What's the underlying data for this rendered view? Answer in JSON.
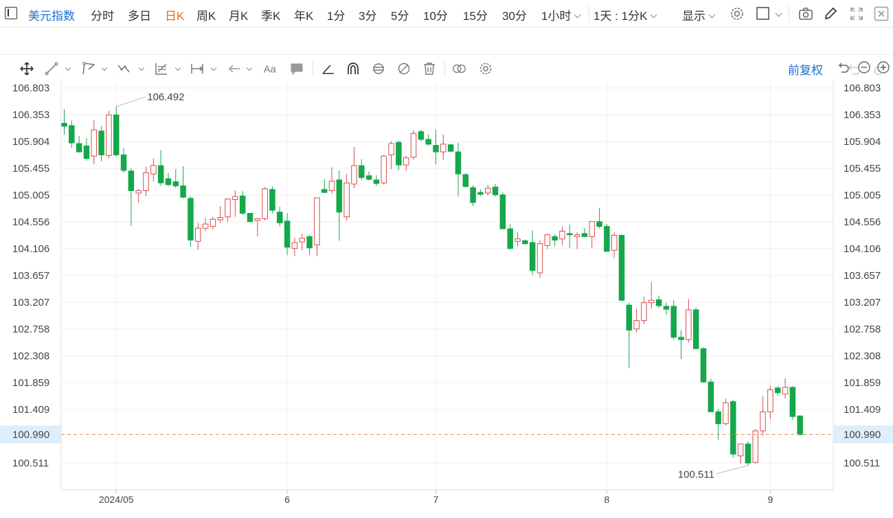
{
  "symbol": "美元指数",
  "periods": [
    "分时",
    "多日",
    "日K",
    "周K",
    "月K",
    "季K",
    "年K",
    "1分",
    "3分",
    "5分",
    "10分",
    "15分",
    "30分"
  ],
  "active_period": "日K",
  "hour_dropdown": "1小时",
  "kline_mode": "1天 : 1分K",
  "display_label": "显示",
  "adjust_label": "前复权",
  "colors": {
    "up": "#d94a4a",
    "down": "#14a84a",
    "accent": "#1e6fd1",
    "active": "#ec6a1c",
    "current_line": "#ee8a43",
    "grid": "#eeeeee"
  },
  "chart_data": {
    "type": "candlestick",
    "title": "",
    "xlabel": "",
    "ylabel": "",
    "ylim": [
      100.33,
      106.98
    ],
    "y_ticks": [
      "106.803",
      "106.353",
      "105.904",
      "105.455",
      "105.005",
      "104.556",
      "104.106",
      "103.657",
      "103.207",
      "102.758",
      "102.308",
      "101.859",
      "101.409",
      "100.511"
    ],
    "x_ticks": [
      "2024/05",
      "6",
      "7",
      "8",
      "9"
    ],
    "x_tick_index": [
      7,
      30,
      50,
      73,
      95
    ],
    "current_value": "100.990",
    "max_label": "106.492",
    "min_label": "100.511",
    "grid": true,
    "candles": [
      {
        "o": 106.21,
        "h": 106.45,
        "l": 106.02,
        "c": 106.16
      },
      {
        "o": 106.17,
        "h": 106.26,
        "l": 105.8,
        "c": 105.88
      },
      {
        "o": 105.87,
        "h": 106.0,
        "l": 105.72,
        "c": 105.73
      },
      {
        "o": 105.83,
        "h": 105.96,
        "l": 105.58,
        "c": 105.62
      },
      {
        "o": 105.66,
        "h": 106.26,
        "l": 105.52,
        "c": 106.1
      },
      {
        "o": 106.08,
        "h": 106.16,
        "l": 105.57,
        "c": 105.68
      },
      {
        "o": 105.67,
        "h": 106.42,
        "l": 105.62,
        "c": 106.35
      },
      {
        "o": 106.35,
        "h": 106.49,
        "l": 105.65,
        "c": 105.68
      },
      {
        "o": 105.68,
        "h": 105.79,
        "l": 105.38,
        "c": 105.42
      },
      {
        "o": 105.41,
        "h": 105.45,
        "l": 104.49,
        "c": 105.08
      },
      {
        "o": 105.04,
        "h": 105.11,
        "l": 104.87,
        "c": 105.08
      },
      {
        "o": 105.08,
        "h": 105.48,
        "l": 104.99,
        "c": 105.38
      },
      {
        "o": 105.36,
        "h": 105.62,
        "l": 105.23,
        "c": 105.5
      },
      {
        "o": 105.5,
        "h": 105.76,
        "l": 105.16,
        "c": 105.21
      },
      {
        "o": 105.28,
        "h": 105.38,
        "l": 105.16,
        "c": 105.18
      },
      {
        "o": 105.23,
        "h": 105.44,
        "l": 105.12,
        "c": 105.16
      },
      {
        "o": 105.16,
        "h": 105.49,
        "l": 104.95,
        "c": 104.97
      },
      {
        "o": 104.95,
        "h": 104.99,
        "l": 104.14,
        "c": 104.25
      },
      {
        "o": 104.23,
        "h": 104.54,
        "l": 104.09,
        "c": 104.45
      },
      {
        "o": 104.45,
        "h": 104.62,
        "l": 104.4,
        "c": 104.52
      },
      {
        "o": 104.48,
        "h": 104.64,
        "l": 104.43,
        "c": 104.6
      },
      {
        "o": 104.59,
        "h": 104.82,
        "l": 104.54,
        "c": 104.63
      },
      {
        "o": 104.64,
        "h": 104.95,
        "l": 104.56,
        "c": 104.94
      },
      {
        "o": 104.93,
        "h": 105.08,
        "l": 104.64,
        "c": 104.98
      },
      {
        "o": 104.99,
        "h": 105.07,
        "l": 104.67,
        "c": 104.7
      },
      {
        "o": 104.7,
        "h": 104.7,
        "l": 104.55,
        "c": 104.56
      },
      {
        "o": 104.58,
        "h": 104.62,
        "l": 104.31,
        "c": 104.61
      },
      {
        "o": 104.61,
        "h": 105.14,
        "l": 104.58,
        "c": 105.11
      },
      {
        "o": 105.1,
        "h": 105.15,
        "l": 104.7,
        "c": 104.75
      },
      {
        "o": 104.72,
        "h": 104.81,
        "l": 104.48,
        "c": 104.54
      },
      {
        "o": 104.57,
        "h": 104.7,
        "l": 104.0,
        "c": 104.13
      },
      {
        "o": 104.11,
        "h": 104.29,
        "l": 103.98,
        "c": 104.21
      },
      {
        "o": 104.22,
        "h": 104.36,
        "l": 104.08,
        "c": 104.28
      },
      {
        "o": 104.31,
        "h": 104.34,
        "l": 104.0,
        "c": 104.12
      },
      {
        "o": 104.17,
        "h": 104.96,
        "l": 103.98,
        "c": 104.96
      },
      {
        "o": 105.1,
        "h": 105.27,
        "l": 105.04,
        "c": 105.05
      },
      {
        "o": 105.08,
        "h": 105.47,
        "l": 105.03,
        "c": 105.24
      },
      {
        "o": 105.26,
        "h": 105.42,
        "l": 104.24,
        "c": 104.72
      },
      {
        "o": 104.64,
        "h": 105.36,
        "l": 104.58,
        "c": 105.21
      },
      {
        "o": 105.19,
        "h": 105.81,
        "l": 105.12,
        "c": 105.5
      },
      {
        "o": 105.5,
        "h": 105.61,
        "l": 105.26,
        "c": 105.3
      },
      {
        "o": 105.33,
        "h": 105.4,
        "l": 105.25,
        "c": 105.27
      },
      {
        "o": 105.26,
        "h": 105.34,
        "l": 105.16,
        "c": 105.2
      },
      {
        "o": 105.21,
        "h": 105.68,
        "l": 105.18,
        "c": 105.66
      },
      {
        "o": 105.68,
        "h": 105.91,
        "l": 105.44,
        "c": 105.87
      },
      {
        "o": 105.89,
        "h": 105.92,
        "l": 105.42,
        "c": 105.51
      },
      {
        "o": 105.51,
        "h": 105.66,
        "l": 105.41,
        "c": 105.63
      },
      {
        "o": 105.64,
        "h": 106.09,
        "l": 105.6,
        "c": 106.04
      },
      {
        "o": 106.07,
        "h": 106.1,
        "l": 105.91,
        "c": 105.94
      },
      {
        "o": 105.94,
        "h": 106.02,
        "l": 105.83,
        "c": 105.86
      },
      {
        "o": 105.84,
        "h": 106.1,
        "l": 105.52,
        "c": 105.73
      },
      {
        "o": 105.73,
        "h": 106.02,
        "l": 105.59,
        "c": 105.86
      },
      {
        "o": 105.85,
        "h": 105.86,
        "l": 105.73,
        "c": 105.74
      },
      {
        "o": 105.73,
        "h": 105.88,
        "l": 104.98,
        "c": 105.36
      },
      {
        "o": 105.35,
        "h": 105.37,
        "l": 105.13,
        "c": 105.15
      },
      {
        "o": 105.13,
        "h": 105.17,
        "l": 104.82,
        "c": 104.88
      },
      {
        "o": 105.05,
        "h": 105.1,
        "l": 104.99,
        "c": 105.02
      },
      {
        "o": 105.04,
        "h": 105.18,
        "l": 105.0,
        "c": 105.12
      },
      {
        "o": 105.14,
        "h": 105.19,
        "l": 104.98,
        "c": 105.01
      },
      {
        "o": 105.01,
        "h": 105.05,
        "l": 104.44,
        "c": 104.44
      },
      {
        "o": 104.44,
        "h": 104.52,
        "l": 104.09,
        "c": 104.11
      },
      {
        "o": 104.23,
        "h": 104.38,
        "l": 104.14,
        "c": 104.27
      },
      {
        "o": 104.24,
        "h": 104.26,
        "l": 104.17,
        "c": 104.19
      },
      {
        "o": 104.21,
        "h": 104.41,
        "l": 103.66,
        "c": 103.74
      },
      {
        "o": 103.7,
        "h": 104.25,
        "l": 103.62,
        "c": 104.19
      },
      {
        "o": 104.16,
        "h": 104.36,
        "l": 104.1,
        "c": 104.34
      },
      {
        "o": 104.31,
        "h": 104.35,
        "l": 104.15,
        "c": 104.25
      },
      {
        "o": 104.27,
        "h": 104.48,
        "l": 104.17,
        "c": 104.4
      },
      {
        "o": 104.36,
        "h": 104.51,
        "l": 104.12,
        "c": 104.34
      },
      {
        "o": 104.31,
        "h": 104.38,
        "l": 104.1,
        "c": 104.34
      },
      {
        "o": 104.36,
        "h": 104.45,
        "l": 104.3,
        "c": 104.31
      },
      {
        "o": 104.31,
        "h": 104.57,
        "l": 104.11,
        "c": 104.56
      },
      {
        "o": 104.56,
        "h": 104.79,
        "l": 104.45,
        "c": 104.48
      },
      {
        "o": 104.48,
        "h": 104.52,
        "l": 104.08,
        "c": 104.06
      },
      {
        "o": 104.08,
        "h": 104.38,
        "l": 103.95,
        "c": 104.33
      },
      {
        "o": 104.33,
        "h": 104.35,
        "l": 103.22,
        "c": 103.24
      },
      {
        "o": 103.16,
        "h": 103.2,
        "l": 102.1,
        "c": 102.74
      },
      {
        "o": 102.76,
        "h": 103.1,
        "l": 102.7,
        "c": 102.9
      },
      {
        "o": 102.9,
        "h": 103.3,
        "l": 102.84,
        "c": 103.2
      },
      {
        "o": 103.2,
        "h": 103.55,
        "l": 103.1,
        "c": 103.24
      },
      {
        "o": 103.25,
        "h": 103.32,
        "l": 103.11,
        "c": 103.15
      },
      {
        "o": 103.14,
        "h": 103.2,
        "l": 103.0,
        "c": 103.09
      },
      {
        "o": 103.14,
        "h": 103.24,
        "l": 102.58,
        "c": 102.62
      },
      {
        "o": 102.62,
        "h": 102.74,
        "l": 102.25,
        "c": 102.58
      },
      {
        "o": 102.58,
        "h": 103.26,
        "l": 102.53,
        "c": 103.08
      },
      {
        "o": 103.08,
        "h": 103.12,
        "l": 102.42,
        "c": 102.43
      },
      {
        "o": 102.43,
        "h": 102.45,
        "l": 101.86,
        "c": 101.87
      },
      {
        "o": 101.87,
        "h": 101.92,
        "l": 101.37,
        "c": 101.37
      },
      {
        "o": 101.37,
        "h": 101.42,
        "l": 100.9,
        "c": 101.17
      },
      {
        "o": 101.17,
        "h": 101.59,
        "l": 101.14,
        "c": 101.52
      },
      {
        "o": 101.54,
        "h": 101.57,
        "l": 100.6,
        "c": 100.66
      },
      {
        "o": 100.63,
        "h": 100.82,
        "l": 100.5,
        "c": 100.83
      },
      {
        "o": 100.83,
        "h": 100.87,
        "l": 100.47,
        "c": 100.51
      },
      {
        "o": 100.52,
        "h": 101.08,
        "l": 100.5,
        "c": 101.05
      },
      {
        "o": 101.05,
        "h": 101.63,
        "l": 100.97,
        "c": 101.37
      },
      {
        "o": 101.37,
        "h": 101.8,
        "l": 101.25,
        "c": 101.74
      },
      {
        "o": 101.77,
        "h": 101.8,
        "l": 101.64,
        "c": 101.69
      },
      {
        "o": 101.67,
        "h": 101.93,
        "l": 101.59,
        "c": 101.78
      },
      {
        "o": 101.78,
        "h": 101.8,
        "l": 101.24,
        "c": 101.29
      },
      {
        "o": 101.3,
        "h": 101.31,
        "l": 100.97,
        "c": 100.99
      }
    ]
  }
}
